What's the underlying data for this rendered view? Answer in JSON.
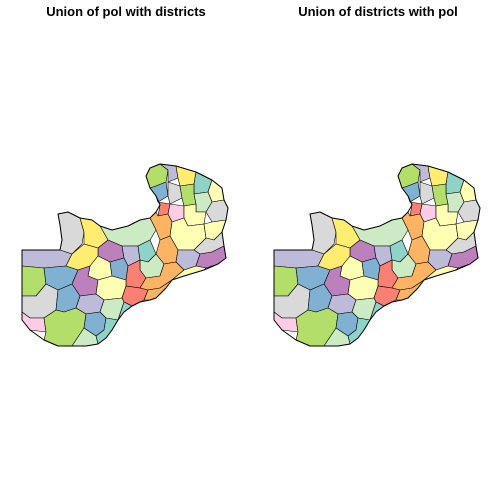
{
  "panels": [
    {
      "title": "Union of pol with districts"
    },
    {
      "title": "Union of districts with pol"
    }
  ],
  "palette": [
    "#8dd3c7",
    "#ffffb3",
    "#bebada",
    "#fb8072",
    "#80b1d3",
    "#fdb462",
    "#b3de69",
    "#fccde5",
    "#d9d9d9",
    "#bc80bd",
    "#ccebc5",
    "#ffed6f"
  ],
  "stroke_color": "#000000",
  "background_color": "#ffffff"
}
